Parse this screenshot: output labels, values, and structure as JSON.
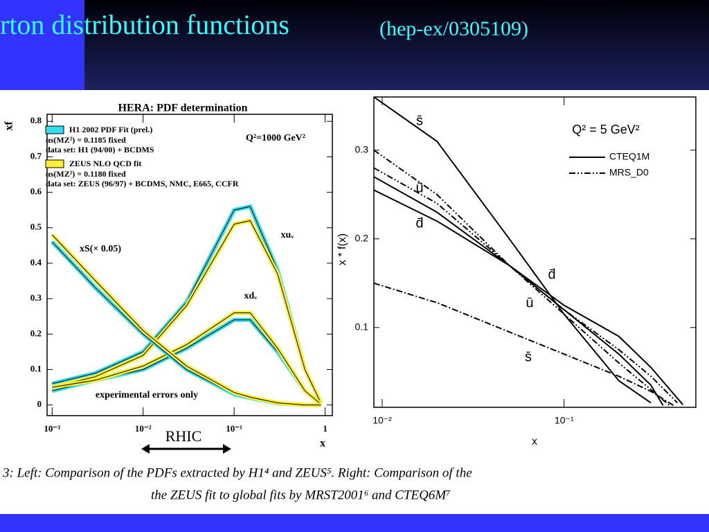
{
  "slide_title": "rton distribution functions",
  "slide_subtitle": "(hep-ex/0305109)",
  "annotations": [
    "RHIC"
  ],
  "caption": [
    "3:   Left: Comparison of the PDFs extracted by H1⁴ and ZEUS⁵. Right: Comparison of the",
    "the ZEUS fit to global fits by MRST2001⁶ and CTEQ6M⁷"
  ],
  "chart_data": [
    {
      "type": "line",
      "title": "HERA: PDF determination",
      "xlabel": "x",
      "ylabel": "xf",
      "log_x": true,
      "xlim": [
        0.00088,
        1.2
      ],
      "ylim": [
        -0.03,
        0.82
      ],
      "xticks": [
        {
          "value": 0.001,
          "label": "10⁻³"
        },
        {
          "value": 0.01,
          "label": "10⁻²"
        },
        {
          "value": 0.1,
          "label": "10⁻¹"
        },
        1
      ],
      "yticks": [
        0,
        0.1,
        0.2,
        0.3,
        0.4,
        0.5,
        0.6,
        0.7,
        0.8
      ],
      "legend": [
        {
          "label": "H1 2002 PDF Fit (prel.)",
          "color": "#33ddee",
          "details": [
            "αs(MZ²) = 0.1185 fixed",
            "data set: H1 (94/00) + BCDMS"
          ]
        },
        {
          "label": "ZEUS NLO QCD fit",
          "color": "#ffee33",
          "details": [
            "αs(MZ²) = 0.1180 fixed",
            "data set: ZEUS (96/97) + BCDMS, NMC, E665, CCFR"
          ]
        }
      ],
      "annotations": [
        "Q²=1000 GeV²",
        "xS(× 0.05)",
        "xuᵥ",
        "xdᵥ",
        "experimental errors only"
      ],
      "series": [
        {
          "color": "#33ddee",
          "x": [
            0.001,
            0.003,
            0.01,
            0.03,
            0.1,
            0.15,
            0.3,
            0.6,
            0.9
          ],
          "values": [
            0.06,
            0.09,
            0.15,
            0.29,
            0.55,
            0.56,
            0.38,
            0.1,
            0.005
          ]
        },
        {
          "color": "#ffee33",
          "x": [
            0.001,
            0.003,
            0.01,
            0.03,
            0.1,
            0.15,
            0.3,
            0.6,
            0.9
          ],
          "values": [
            0.05,
            0.08,
            0.14,
            0.28,
            0.51,
            0.52,
            0.37,
            0.1,
            0.005
          ]
        },
        {
          "color": "#33ddee",
          "x": [
            0.001,
            0.003,
            0.01,
            0.03,
            0.1,
            0.15,
            0.3,
            0.6,
            0.9
          ],
          "values": [
            0.04,
            0.07,
            0.1,
            0.16,
            0.24,
            0.24,
            0.15,
            0.04,
            0.002
          ]
        },
        {
          "color": "#ffee33",
          "x": [
            0.001,
            0.003,
            0.01,
            0.03,
            0.1,
            0.15,
            0.3,
            0.6,
            0.9
          ],
          "values": [
            0.05,
            0.07,
            0.11,
            0.17,
            0.26,
            0.26,
            0.16,
            0.04,
            0.002
          ]
        },
        {
          "color": "#33ddee",
          "x": [
            0.001,
            0.003,
            0.01,
            0.03,
            0.1,
            0.15,
            0.3,
            0.6,
            0.9
          ],
          "values": [
            0.46,
            0.33,
            0.2,
            0.1,
            0.03,
            0.02,
            0.005,
            0,
            0
          ]
        },
        {
          "color": "#ffee33",
          "x": [
            0.001,
            0.003,
            0.01,
            0.03,
            0.1,
            0.15,
            0.3,
            0.6,
            0.9
          ],
          "values": [
            0.48,
            0.35,
            0.21,
            0.11,
            0.035,
            0.022,
            0.006,
            0,
            0
          ]
        }
      ]
    },
    {
      "type": "line",
      "xlabel": "x",
      "ylabel": "x * f(x)",
      "log_x": true,
      "xlim": [
        0.009,
        0.53
      ],
      "ylim": [
        0.01,
        0.36
      ],
      "xticks": [
        {
          "value": 0.01,
          "label": "10⁻²"
        },
        {
          "value": 0.1,
          "label": "10⁻¹"
        }
      ],
      "yticks": [
        0.1,
        0.2,
        0.3
      ],
      "legend": [
        {
          "label": "CTEQ1M",
          "dash": "solid"
        },
        {
          "label": "MRS_D0",
          "dash": "dashdotdot"
        }
      ],
      "annotations": [
        "Q² = 5 GeV²",
        "s̄",
        "ū",
        "d̄",
        "d̄",
        "ū",
        "s̄"
      ],
      "series": [
        {
          "color": "#000000",
          "dash": "solid",
          "x": [
            0.009,
            0.02,
            0.05,
            0.1,
            0.2,
            0.3
          ],
          "values": [
            0.36,
            0.31,
            0.2,
            0.115,
            0.04,
            0.015
          ]
        },
        {
          "color": "#000000",
          "dash": "dashdot",
          "x": [
            0.009,
            0.02,
            0.05,
            0.1,
            0.2,
            0.3,
            0.4
          ],
          "values": [
            0.15,
            0.128,
            0.095,
            0.07,
            0.045,
            0.028,
            0.012
          ]
        },
        {
          "color": "#000000",
          "dash": "solid",
          "x": [
            0.009,
            0.02,
            0.05,
            0.1,
            0.2,
            0.3,
            0.35
          ],
          "values": [
            0.27,
            0.23,
            0.17,
            0.12,
            0.07,
            0.035,
            0.012
          ]
        },
        {
          "color": "#000000",
          "dash": "solid",
          "x": [
            0.009,
            0.02,
            0.05,
            0.1,
            0.2,
            0.3,
            0.45
          ],
          "values": [
            0.255,
            0.22,
            0.17,
            0.125,
            0.09,
            0.055,
            0.013
          ]
        },
        {
          "color": "#000000",
          "dash": "dashdotdot",
          "x": [
            0.009,
            0.02,
            0.05,
            0.1,
            0.2,
            0.3,
            0.38
          ],
          "values": [
            0.3,
            0.25,
            0.17,
            0.115,
            0.06,
            0.03,
            0.012
          ]
        },
        {
          "color": "#000000",
          "dash": "dashdotdot",
          "x": [
            0.009,
            0.02,
            0.05,
            0.1,
            0.2,
            0.3,
            0.42
          ],
          "values": [
            0.28,
            0.24,
            0.17,
            0.12,
            0.075,
            0.045,
            0.015
          ]
        }
      ]
    }
  ]
}
